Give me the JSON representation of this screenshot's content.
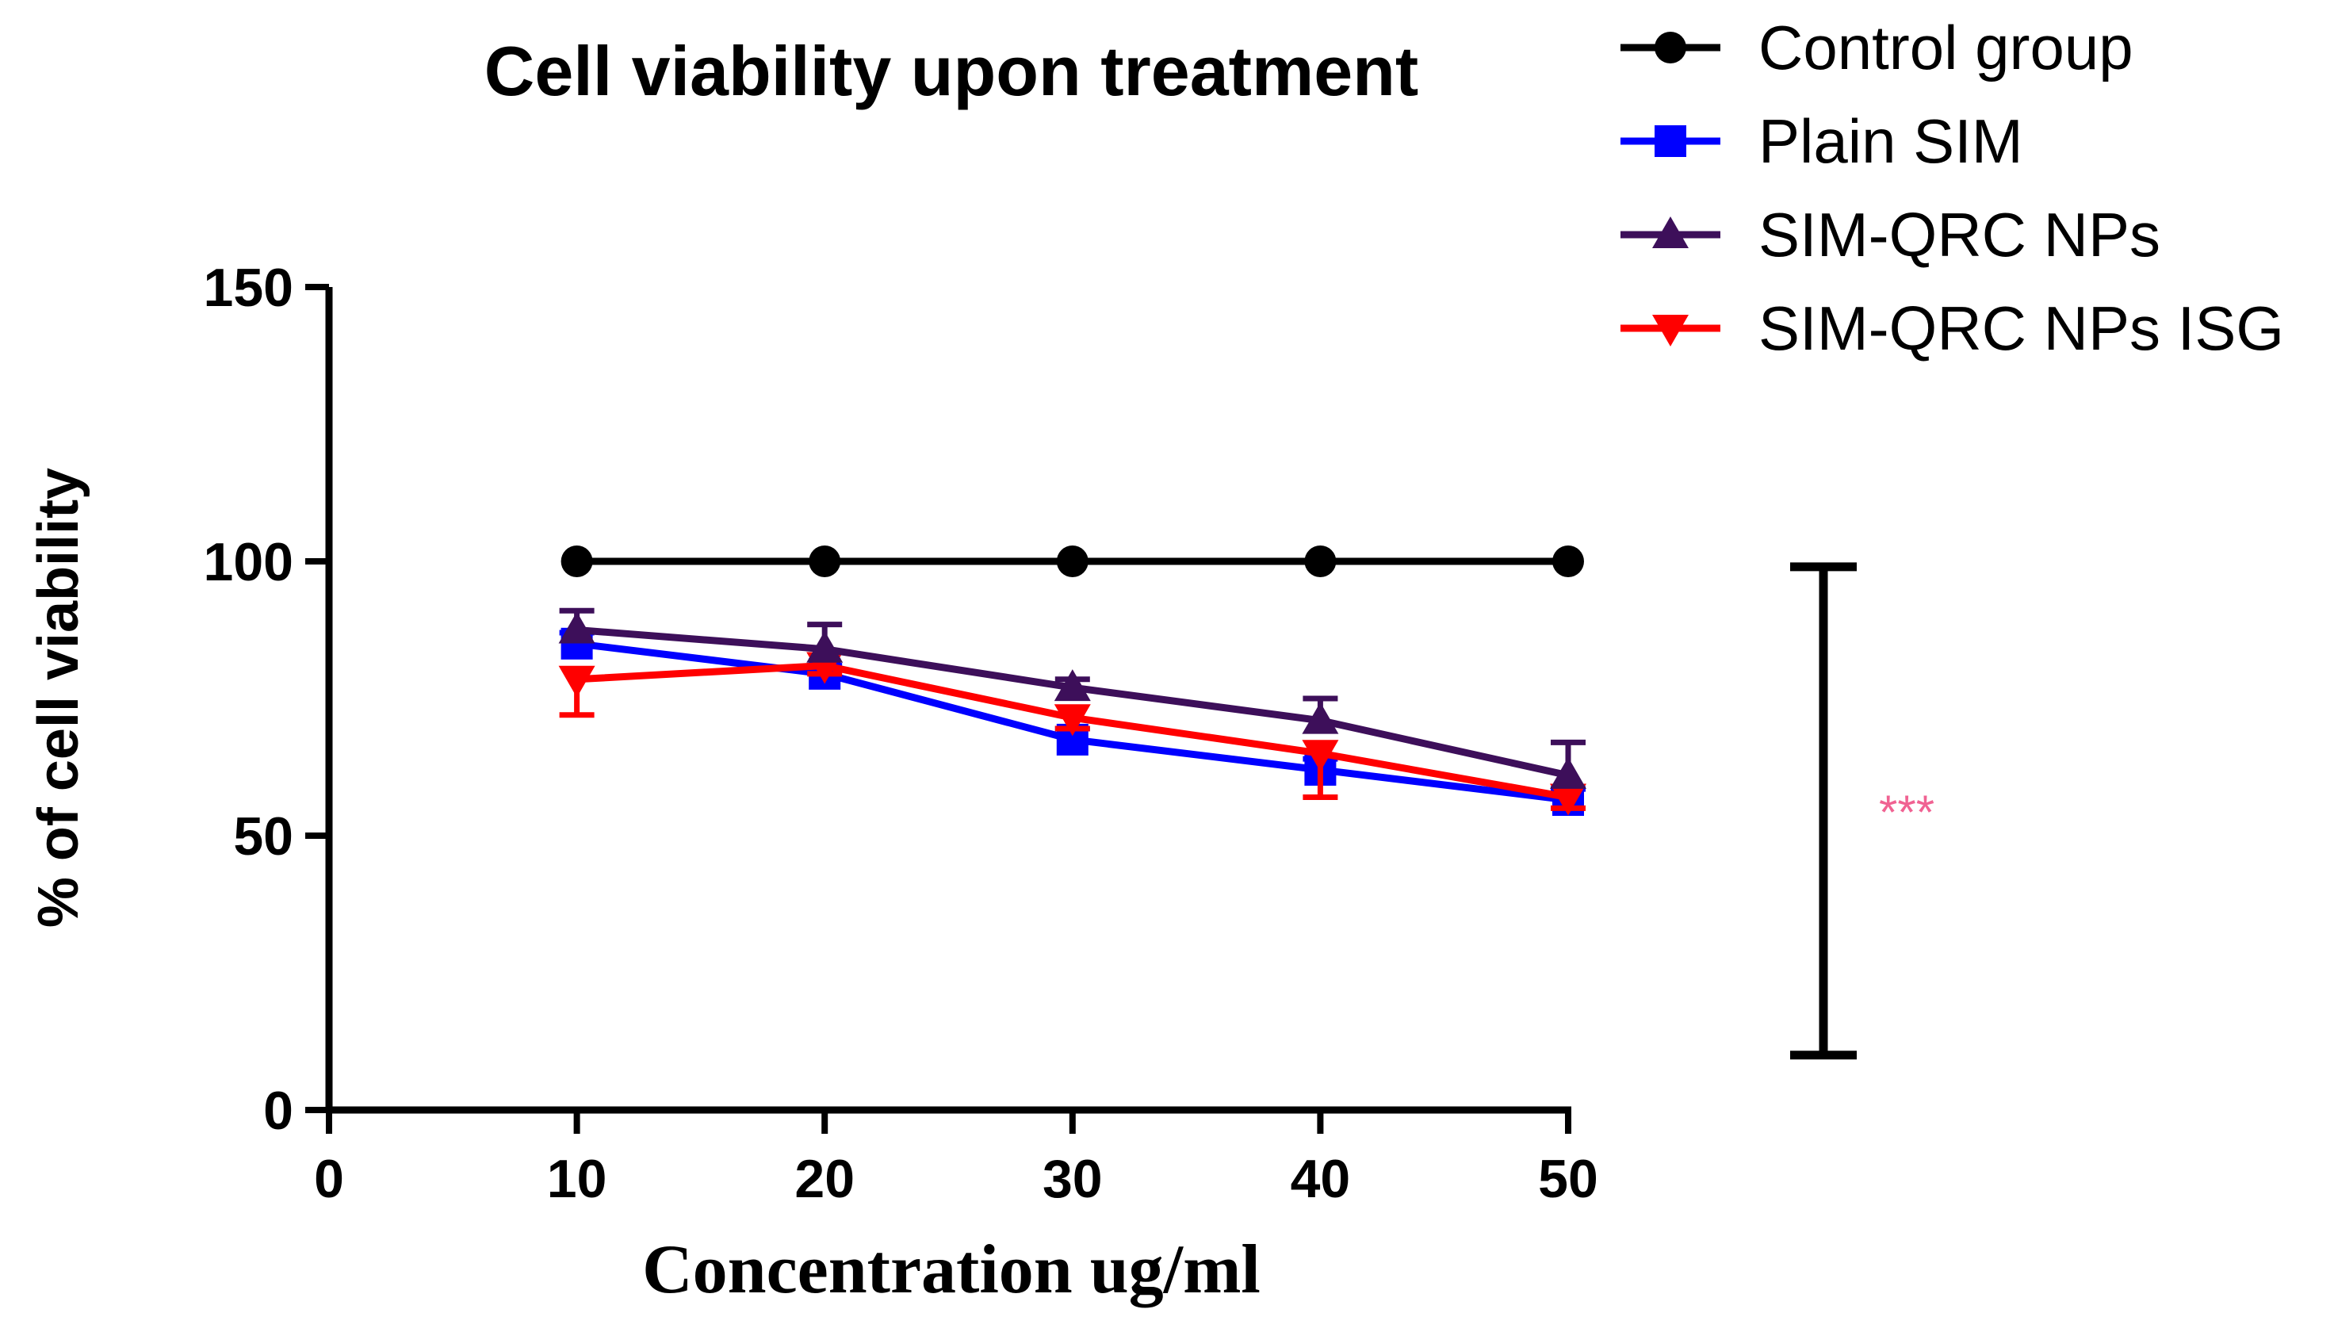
{
  "chart_data": {
    "type": "line",
    "title": "Cell viability upon treatment",
    "xlabel": "Concentration ug/ml",
    "ylabel": "% of cell viability",
    "x": [
      10,
      20,
      30,
      40,
      50
    ],
    "xlim": [
      0,
      50
    ],
    "ylim": [
      0,
      150
    ],
    "xticks": [
      0,
      10,
      20,
      30,
      40,
      50
    ],
    "yticks": [
      0,
      50,
      100,
      150
    ],
    "legend_position": "top-right",
    "series": [
      {
        "name": "Control group",
        "color": "#000000",
        "marker": "circle",
        "values": [
          100,
          100,
          100,
          100,
          100
        ],
        "errors": [
          0,
          0,
          0,
          0,
          0
        ]
      },
      {
        "name": "Plain SIM",
        "color": "#0000ff",
        "marker": "square",
        "values": [
          85,
          79.5,
          67.5,
          62,
          56.5
        ],
        "errors": [
          2,
          1.5,
          2,
          2,
          2
        ]
      },
      {
        "name": "SIM-QRC NPs",
        "color": "#3d0f5a",
        "marker": "triangle-up",
        "values": [
          87.5,
          84,
          77,
          71,
          61
        ],
        "errors": [
          3.5,
          4.5,
          1.5,
          4,
          6
        ]
      },
      {
        "name": "SIM-QRC NPs ISG",
        "color": "#ff0000",
        "marker": "triangle-down",
        "values": [
          78.5,
          81,
          71.5,
          65,
          57
        ],
        "errors": [
          6.5,
          1.5,
          2,
          8,
          2
        ]
      }
    ],
    "significance": {
      "label": "***",
      "color": "#f06292",
      "range": [
        10,
        99
      ]
    }
  }
}
